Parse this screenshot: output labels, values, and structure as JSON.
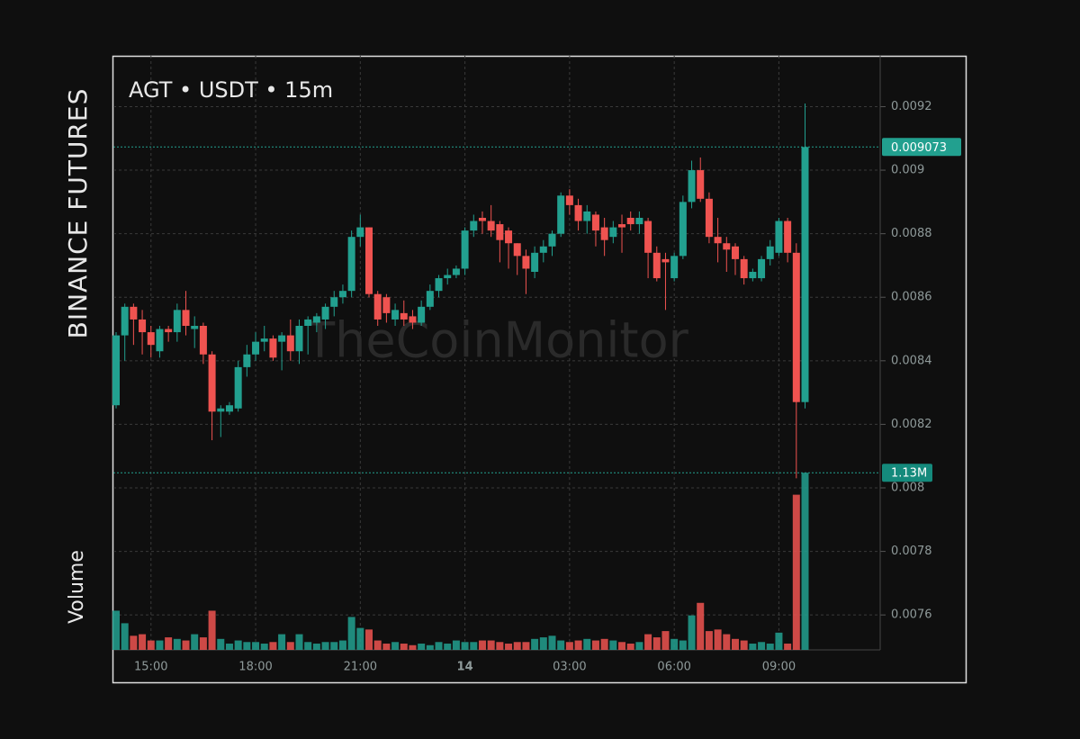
{
  "chart_data": {
    "type": "candlestick",
    "exchange": "BINANCE FUTURES",
    "title": "AGT • USDT • 15m",
    "watermark": "TheCoinMonitor",
    "up_color": "#22a08f",
    "down_color": "#ef5350",
    "grid": true,
    "ylim": [
      0.00749,
      0.00936
    ],
    "yticks": [
      0.0076,
      0.0078,
      0.008,
      0.0082,
      0.0084,
      0.0086,
      0.0088,
      0.009,
      0.0092
    ],
    "categories": [
      null,
      null,
      null,
      null,
      "15:00",
      null,
      null,
      null,
      null,
      null,
      null,
      null,
      null,
      null,
      null,
      null,
      "18:00",
      null,
      null,
      null,
      null,
      null,
      null,
      null,
      null,
      null,
      null,
      null,
      "21:00",
      null,
      null,
      null,
      null,
      null,
      null,
      null,
      null,
      null,
      null,
      null,
      "14",
      null,
      null,
      null,
      null,
      null,
      null,
      null,
      null,
      null,
      null,
      null,
      "03:00",
      null,
      null,
      null,
      null,
      null,
      null,
      null,
      null,
      null,
      null,
      null,
      "06:00",
      null,
      null,
      null,
      null,
      null,
      null,
      null,
      null,
      null,
      null,
      null,
      "09:00",
      null,
      null,
      null
    ],
    "open": [
      0.00826,
      0.00848,
      0.00857,
      0.00853,
      0.00849,
      0.00843,
      0.0085,
      0.00849,
      0.00856,
      0.0085,
      0.00851,
      0.00842,
      0.00824,
      0.00824,
      0.00825,
      0.00838,
      0.00842,
      0.00846,
      0.00847,
      0.00846,
      0.00848,
      0.00843,
      0.00851,
      0.00852,
      0.00853,
      0.00857,
      0.0086,
      0.00862,
      0.00879,
      0.00882,
      0.00861,
      0.0086,
      0.00853,
      0.00855,
      0.00854,
      0.00852,
      0.00857,
      0.00862,
      0.00866,
      0.00867,
      0.00869,
      0.00881,
      0.00885,
      0.00884,
      0.00883,
      0.00881,
      0.00877,
      0.00873,
      0.00868,
      0.00874,
      0.00876,
      0.0088,
      0.00892,
      0.00889,
      0.00884,
      0.00886,
      0.00882,
      0.00879,
      0.00883,
      0.00885,
      0.00883,
      0.00884,
      0.00874,
      0.00872,
      0.00866,
      0.00873,
      0.0089,
      0.009,
      0.00891,
      0.00879,
      0.00877,
      0.00876,
      0.00872,
      0.00866,
      0.00866,
      0.00872,
      0.00874,
      0.00884,
      0.00874,
      0.00827
    ],
    "high": [
      0.00849,
      0.00858,
      0.00858,
      0.00856,
      0.00851,
      0.00851,
      0.00851,
      0.00858,
      0.00862,
      0.00854,
      0.00852,
      0.00843,
      0.00826,
      0.00827,
      0.0084,
      0.00845,
      0.00849,
      0.00851,
      0.00848,
      0.00849,
      0.00853,
      0.00853,
      0.00854,
      0.00855,
      0.00858,
      0.00862,
      0.00864,
      0.00881,
      0.00886,
      0.00882,
      0.00862,
      0.00861,
      0.00858,
      0.00859,
      0.00856,
      0.00859,
      0.00864,
      0.00867,
      0.00869,
      0.0087,
      0.00882,
      0.00886,
      0.00887,
      0.00889,
      0.00884,
      0.00882,
      0.00877,
      0.00875,
      0.00876,
      0.00878,
      0.00881,
      0.00893,
      0.00894,
      0.00891,
      0.00889,
      0.00887,
      0.00885,
      0.00884,
      0.00886,
      0.00887,
      0.00887,
      0.00885,
      0.00876,
      0.00874,
      0.00874,
      0.00892,
      0.00903,
      0.00904,
      0.00893,
      0.00885,
      0.00879,
      0.00877,
      0.00873,
      0.00869,
      0.00873,
      0.00878,
      0.00885,
      0.00885,
      0.00877,
      0.00921
    ],
    "low": [
      0.00825,
      0.0084,
      0.00845,
      0.00842,
      0.00841,
      0.00841,
      0.00846,
      0.00846,
      0.00848,
      0.00844,
      0.00839,
      0.00815,
      0.00816,
      0.00823,
      0.00824,
      0.00835,
      0.0084,
      0.00843,
      0.0084,
      0.00837,
      0.0084,
      0.00839,
      0.00842,
      0.00849,
      0.0085,
      0.00854,
      0.00858,
      0.0086,
      0.00876,
      0.0086,
      0.00851,
      0.00852,
      0.00851,
      0.00851,
      0.0085,
      0.00851,
      0.00856,
      0.0086,
      0.00864,
      0.00866,
      0.00867,
      0.00879,
      0.0088,
      0.00879,
      0.00871,
      0.00869,
      0.00867,
      0.00861,
      0.00866,
      0.00871,
      0.00873,
      0.00879,
      0.00886,
      0.00881,
      0.0088,
      0.00876,
      0.00873,
      0.00877,
      0.00874,
      0.00881,
      0.0088,
      0.00866,
      0.00865,
      0.00856,
      0.00865,
      0.00872,
      0.00888,
      0.0089,
      0.00877,
      0.00871,
      0.00868,
      0.00867,
      0.00864,
      0.00865,
      0.00865,
      0.0087,
      0.00873,
      0.00871,
      0.00803,
      0.00825
    ],
    "close": [
      0.00848,
      0.00857,
      0.00853,
      0.00849,
      0.00845,
      0.0085,
      0.00849,
      0.00856,
      0.00851,
      0.00851,
      0.00842,
      0.00824,
      0.00825,
      0.00826,
      0.00838,
      0.00842,
      0.00846,
      0.00847,
      0.00841,
      0.00848,
      0.00843,
      0.00851,
      0.00853,
      0.00854,
      0.00857,
      0.0086,
      0.00862,
      0.00879,
      0.00882,
      0.00861,
      0.00853,
      0.00855,
      0.00856,
      0.00853,
      0.00852,
      0.00857,
      0.00862,
      0.00866,
      0.00867,
      0.00869,
      0.00881,
      0.00884,
      0.00884,
      0.00881,
      0.00878,
      0.00877,
      0.00873,
      0.00869,
      0.00874,
      0.00876,
      0.0088,
      0.00892,
      0.00889,
      0.00884,
      0.00887,
      0.00881,
      0.00878,
      0.00882,
      0.00882,
      0.00883,
      0.00885,
      0.00874,
      0.00866,
      0.00871,
      0.00873,
      0.0089,
      0.009,
      0.00891,
      0.00879,
      0.00877,
      0.00875,
      0.00872,
      0.00866,
      0.00868,
      0.00872,
      0.00876,
      0.00884,
      0.00874,
      0.00827,
      0.009073
    ],
    "volume": {
      "name": "Volume",
      "ylim": [
        0,
        3.79
      ],
      "values": [
        0.25,
        0.17,
        0.09,
        0.1,
        0.06,
        0.06,
        0.08,
        0.07,
        0.06,
        0.1,
        0.08,
        0.25,
        0.07,
        0.04,
        0.06,
        0.05,
        0.05,
        0.04,
        0.05,
        0.1,
        0.05,
        0.1,
        0.05,
        0.04,
        0.05,
        0.05,
        0.06,
        0.21,
        0.14,
        0.13,
        0.06,
        0.04,
        0.05,
        0.04,
        0.03,
        0.04,
        0.03,
        0.05,
        0.04,
        0.06,
        0.05,
        0.05,
        0.06,
        0.06,
        0.05,
        0.04,
        0.05,
        0.05,
        0.07,
        0.08,
        0.09,
        0.06,
        0.05,
        0.06,
        0.07,
        0.06,
        0.07,
        0.06,
        0.05,
        0.04,
        0.05,
        0.1,
        0.08,
        0.12,
        0.07,
        0.06,
        0.22,
        0.3,
        0.12,
        0.13,
        0.1,
        0.07,
        0.06,
        0.04,
        0.05,
        0.04,
        0.11,
        0.04,
        0.99,
        1.13
      ],
      "last_label": "1.13M"
    }
  }
}
